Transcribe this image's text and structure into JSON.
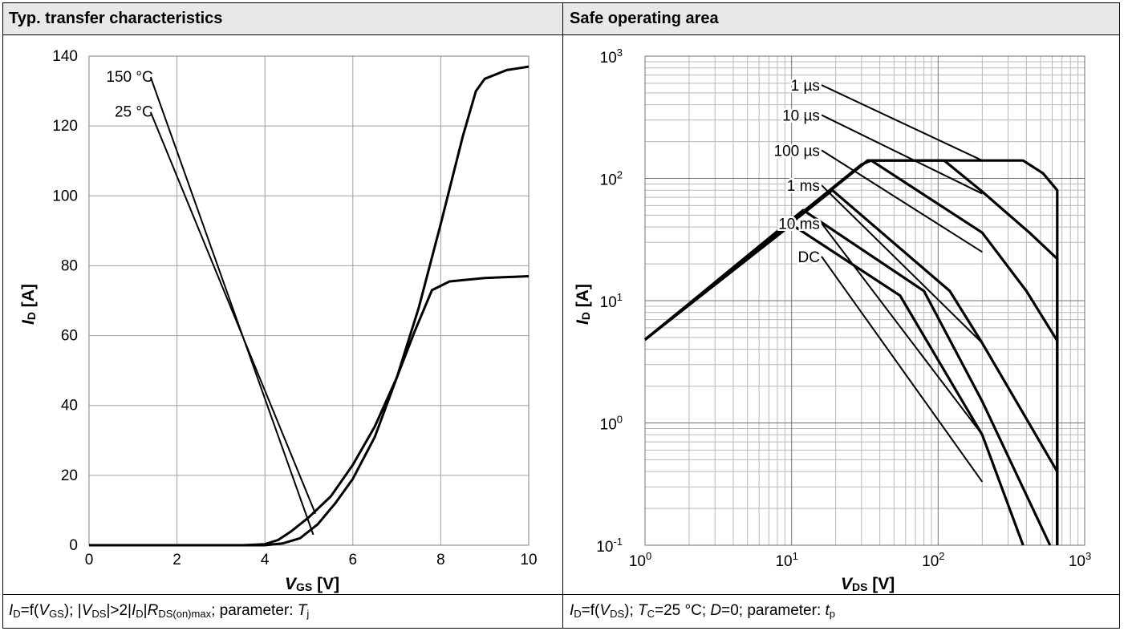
{
  "panels": {
    "left": {
      "title": "Typ. transfer characteristics",
      "caption": {
        "p1": "I",
        "p1sub": "D",
        "p2": "=f(",
        "p3": "V",
        "p3sub": "GS",
        "p4": "); |",
        "p5": "V",
        "p5sub": "DS",
        "p6": "|>2|",
        "p7": "I",
        "p7sub": "D",
        "p8": "|",
        "p9": "R",
        "p9sub": "DS(on)max",
        "p10": "; parameter: ",
        "p11": "T",
        "p11sub": "j"
      }
    },
    "right": {
      "title": "Safe operating area",
      "caption": {
        "p1": "I",
        "p1sub": "D",
        "p2": "=f(",
        "p3": "V",
        "p3sub": "DS",
        "p4": "); ",
        "p5": "T",
        "p5sub": "C",
        "p6": "=25 °C; ",
        "p7": "D",
        "p8": "=0; parameter: ",
        "p9": "t",
        "p9sub": "p"
      }
    }
  },
  "chart_data": [
    {
      "type": "line",
      "title": "Typ. transfer characteristics",
      "xlabel": {
        "main": "V",
        "sub": "GS",
        "unit": " [V]"
      },
      "ylabel": {
        "main": "I",
        "sub": "D",
        "unit": " [A]"
      },
      "xlim": [
        0,
        10
      ],
      "ylim": [
        0,
        140
      ],
      "xticks": [
        "0",
        "2",
        "4",
        "6",
        "8",
        "10"
      ],
      "yticks": [
        "0",
        "20",
        "40",
        "60",
        "80",
        "100",
        "120",
        "140"
      ],
      "grid": true,
      "series": [
        {
          "name": "150 °C",
          "label_pos": [
            1.4,
            134
          ],
          "points": [
            [
              0,
              0
            ],
            [
              3.5,
              0
            ],
            [
              4.0,
              0.3
            ],
            [
              4.3,
              1.5
            ],
            [
              4.6,
              4
            ],
            [
              5.0,
              8
            ],
            [
              5.5,
              14
            ],
            [
              6.0,
              23
            ],
            [
              6.5,
              34
            ],
            [
              7.0,
              48
            ],
            [
              7.4,
              61
            ],
            [
              7.8,
              73
            ],
            [
              8.2,
              75.5
            ],
            [
              9.0,
              76.5
            ],
            [
              10,
              77
            ]
          ]
        },
        {
          "name": "25 °C",
          "label_pos": [
            1.4,
            124
          ],
          "points": [
            [
              0,
              0
            ],
            [
              4.0,
              0
            ],
            [
              4.4,
              0.5
            ],
            [
              4.8,
              2
            ],
            [
              5.2,
              6
            ],
            [
              5.6,
              12
            ],
            [
              6.0,
              19
            ],
            [
              6.5,
              31
            ],
            [
              7.0,
              48
            ],
            [
              7.5,
              68
            ],
            [
              8.0,
              92
            ],
            [
              8.5,
              117
            ],
            [
              8.8,
              130
            ],
            [
              9.0,
              133.5
            ],
            [
              9.5,
              136
            ],
            [
              10,
              137
            ]
          ]
        }
      ],
      "annotations": [
        {
          "text": "150 °C",
          "from": [
            1.4,
            134
          ],
          "to": [
            5.1,
            3
          ]
        },
        {
          "text": "25 °C",
          "from": [
            1.4,
            124
          ],
          "to": [
            5.15,
            9
          ]
        }
      ]
    },
    {
      "type": "line",
      "title": "Safe operating area",
      "xscale": "log",
      "yscale": "log",
      "xlabel": {
        "main": "V",
        "sub": "DS",
        "unit": " [V]"
      },
      "ylabel": {
        "main": "I",
        "sub": "D",
        "unit": " [A]"
      },
      "xlim": [
        1,
        1000
      ],
      "ylim": [
        0.1,
        1000
      ],
      "xticks": [
        {
          "base": "10",
          "exp": "0"
        },
        {
          "base": "10",
          "exp": "1"
        },
        {
          "base": "10",
          "exp": "2"
        },
        {
          "base": "10",
          "exp": "3"
        }
      ],
      "yticks": [
        {
          "base": "10",
          "exp": "-1"
        },
        {
          "base": "10",
          "exp": "0"
        },
        {
          "base": "10",
          "exp": "1"
        },
        {
          "base": "10",
          "exp": "2"
        },
        {
          "base": "10",
          "exp": "3"
        }
      ],
      "grid": true,
      "series": [
        {
          "name": "1 µs",
          "points": [
            [
              1,
              4.8
            ],
            [
              33,
              140
            ],
            [
              380,
              140
            ],
            [
              520,
              110
            ],
            [
              650,
              80
            ],
            [
              650,
              0.1
            ]
          ]
        },
        {
          "name": "10 µs",
          "points": [
            [
              1,
              4.8
            ],
            [
              33,
              140
            ],
            [
              110,
              140
            ],
            [
              200,
              78
            ],
            [
              420,
              36
            ],
            [
              650,
              22
            ],
            [
              650,
              0.1
            ]
          ]
        },
        {
          "name": "100 µs",
          "points": [
            [
              1,
              4.8
            ],
            [
              30,
              130
            ],
            [
              35,
              140
            ],
            [
              200,
              36
            ],
            [
              400,
              12
            ],
            [
              650,
              4.7
            ],
            [
              650,
              0.1
            ]
          ]
        },
        {
          "name": "1 ms",
          "points": [
            [
              1,
              4.8
            ],
            [
              19,
              80
            ],
            [
              120,
              12
            ],
            [
              200,
              4.5
            ],
            [
              650,
              0.4
            ],
            [
              650,
              0.1
            ]
          ]
        },
        {
          "name": "10 ms",
          "points": [
            [
              1,
              4.8
            ],
            [
              12,
              55
            ],
            [
              80,
              12
            ],
            [
              200,
              1.5
            ],
            [
              580,
              0.1
            ]
          ]
        },
        {
          "name": "DC",
          "points": [
            [
              1,
              4.8
            ],
            [
              10,
              42
            ],
            [
              55,
              11
            ],
            [
              200,
              0.8
            ],
            [
              380,
              0.1
            ]
          ]
        }
      ],
      "annotations": [
        {
          "text": "1 µs",
          "from": [
            16,
            580
          ],
          "to": [
            200,
            140
          ]
        },
        {
          "text": "10 µs",
          "from": [
            16,
            330
          ],
          "to": [
            200,
            75
          ]
        },
        {
          "text": "100 µs",
          "from": [
            16,
            170
          ],
          "to": [
            200,
            25
          ]
        },
        {
          "text": "1 ms",
          "from": [
            16,
            88
          ],
          "to": [
            200,
            4.5
          ]
        },
        {
          "text": "10 ms",
          "from": [
            16,
            43
          ],
          "to": [
            200,
            0.8
          ]
        },
        {
          "text": "DC",
          "from": [
            16,
            23
          ],
          "to": [
            200,
            0.33
          ]
        }
      ]
    }
  ]
}
